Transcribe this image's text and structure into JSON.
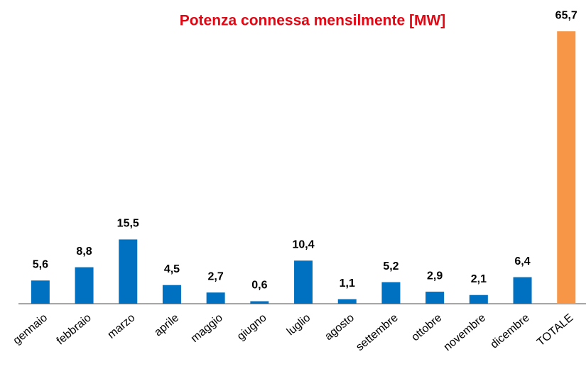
{
  "chart_data": {
    "type": "bar",
    "title": "Potenza connessa mensilmente [MW]",
    "categories": [
      "gennaio",
      "febbraio",
      "marzo",
      "aprile",
      "maggio",
      "giugno",
      "luglio",
      "agosto",
      "settembre",
      "ottobre",
      "novembre",
      "dicembre",
      "TOTALE"
    ],
    "values": [
      5.6,
      8.8,
      15.5,
      4.5,
      2.7,
      0.6,
      10.4,
      1.1,
      5.2,
      2.9,
      2.1,
      6.4,
      65.7
    ],
    "value_labels": [
      "5,6",
      "8,8",
      "15,5",
      "4,5",
      "2,7",
      "0,6",
      "10,4",
      "1,1",
      "5,2",
      "2,9",
      "2,1",
      "6,4",
      "65,7"
    ],
    "colors": [
      "#0070c0",
      "#0070c0",
      "#0070c0",
      "#0070c0",
      "#0070c0",
      "#0070c0",
      "#0070c0",
      "#0070c0",
      "#0070c0",
      "#0070c0",
      "#0070c0",
      "#0070c0",
      "#f79646"
    ],
    "ylim": [
      0,
      70
    ]
  }
}
